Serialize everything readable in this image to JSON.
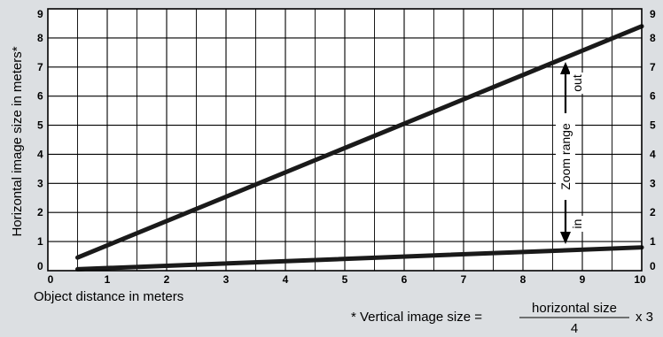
{
  "chart_data": {
    "type": "line",
    "xlabel": "Object distance in meters",
    "ylabel": "Horizontal image size in meters*",
    "xlim": [
      0,
      10
    ],
    "ylim": [
      0,
      9
    ],
    "x_ticks": [
      "0",
      "1",
      "2",
      "3",
      "4",
      "5",
      "6",
      "7",
      "8",
      "9",
      "10"
    ],
    "y_ticks": [
      "0",
      "1",
      "2",
      "3",
      "4",
      "5",
      "6",
      "7",
      "8",
      "9"
    ],
    "grid": true,
    "series": [
      {
        "x": [
          0.5,
          10
        ],
        "values": [
          0.45,
          8.4
        ]
      },
      {
        "x": [
          0.5,
          10
        ],
        "values": [
          0.05,
          0.8
        ]
      }
    ],
    "annotations": {
      "range_label": "Zoom range",
      "out_label": "out",
      "in_label": "in"
    },
    "footnote": {
      "prefix": "* Vertical image size =",
      "numerator": "horizontal size",
      "denominator": "4",
      "suffix": "x 3"
    }
  }
}
